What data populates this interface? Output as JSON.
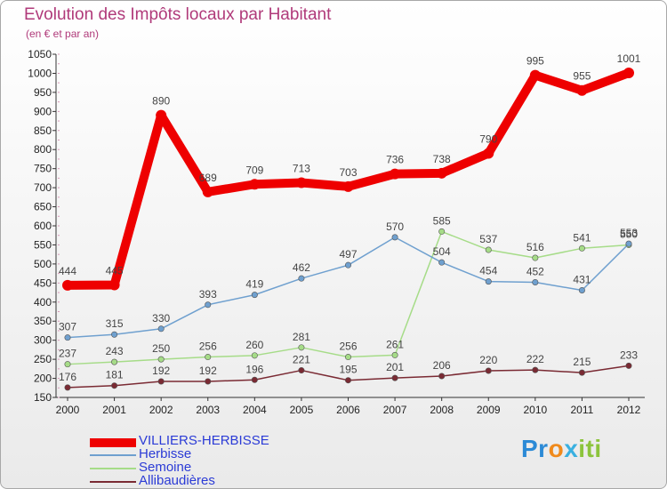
{
  "header": {
    "title": "Evolution des Impôts locaux par Habitant",
    "subtitle": "(en € et par an)"
  },
  "logo": {
    "text": "Proxiti",
    "parts": [
      "Pr",
      "o",
      "x",
      "iti"
    ],
    "colors": [
      "#2c8ad6",
      "#f08a1c",
      "#3ab0e0",
      "#8cc43c"
    ]
  },
  "chart_data": {
    "type": "line",
    "title": "Evolution des Impôts locaux par Habitant",
    "subtitle": "(en € et par an)",
    "xlabel": "",
    "ylabel": "",
    "x": [
      "2000",
      "2001",
      "2002",
      "2003",
      "2004",
      "2005",
      "2006",
      "2007",
      "2008",
      "2009",
      "2010",
      "2011",
      "2012"
    ],
    "ylim": [
      150,
      1050
    ],
    "yticks": [
      150,
      200,
      250,
      300,
      350,
      400,
      450,
      500,
      550,
      600,
      650,
      700,
      750,
      800,
      850,
      900,
      950,
      1000,
      1050
    ],
    "grid": false,
    "legend_position": "bottom-left",
    "series": [
      {
        "name": "VILLIERS-HERBISSE",
        "color": "#ee0000",
        "values": [
          444,
          445,
          890,
          689,
          709,
          713,
          703,
          736,
          738,
          790,
          995,
          955,
          1001
        ],
        "labels": [
          "444",
          "445",
          "890",
          "689",
          "709",
          "713",
          "703",
          "736",
          "738",
          "790",
          "995",
          "955",
          "1001"
        ]
      },
      {
        "name": "Herbisse",
        "color": "#6fa0cf",
        "values": [
          307,
          315,
          330,
          393,
          419,
          462,
          497,
          570,
          504,
          454,
          452,
          431,
          553
        ],
        "labels": [
          "307",
          "315",
          "330",
          "393",
          "419",
          "462",
          "497",
          "570",
          "504",
          "454",
          "452",
          "431",
          "553"
        ]
      },
      {
        "name": "Semoine",
        "color": "#a6dc88",
        "values": [
          237,
          243,
          250,
          256,
          260,
          281,
          256,
          261,
          585,
          537,
          516,
          541,
          550
        ],
        "labels": [
          "237",
          "243",
          "250",
          "256",
          "260",
          "281",
          "256",
          "261",
          "585",
          "537",
          "516",
          "541",
          "550"
        ]
      },
      {
        "name": "Allibaudières",
        "color": "#7a2a33",
        "values": [
          176,
          181,
          192,
          192,
          196,
          221,
          195,
          201,
          206,
          220,
          222,
          215,
          233
        ],
        "labels": [
          "176",
          "181",
          "192",
          "192",
          "196",
          "221",
          "195",
          "201",
          "206",
          "220",
          "222",
          "215",
          "233"
        ]
      }
    ]
  }
}
